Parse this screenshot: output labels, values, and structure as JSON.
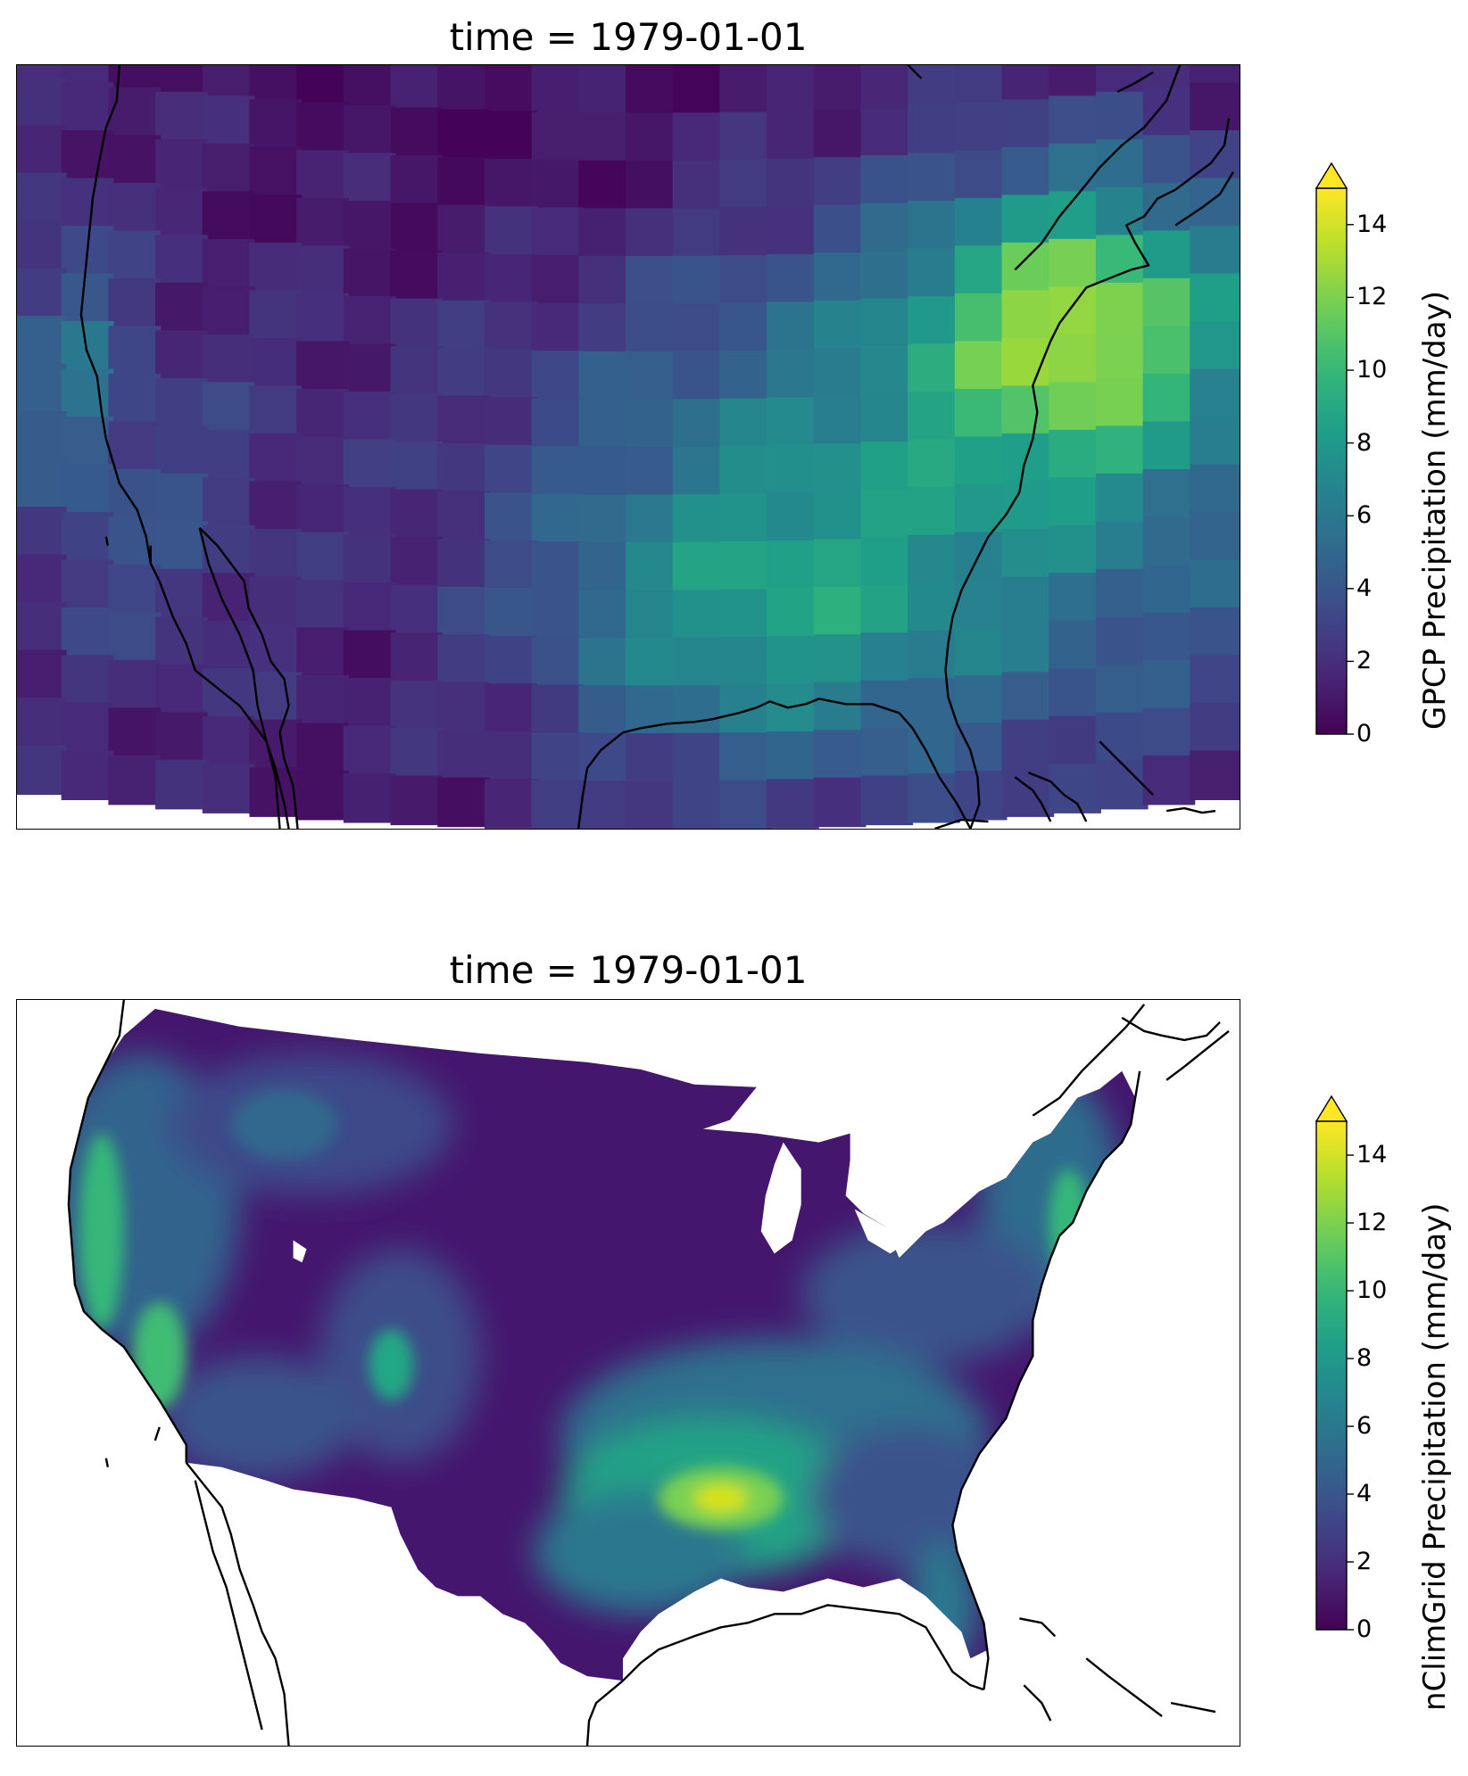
{
  "panels": [
    {
      "id": "gpcp",
      "title": "time = 1979-01-01",
      "colorbar": {
        "label": "GPCP Precipitation (mm/day)",
        "ticks": [
          0,
          2,
          4,
          6,
          8,
          10,
          12,
          14
        ],
        "range": [
          0,
          15
        ],
        "extend": "max",
        "colormap": "viridis"
      }
    },
    {
      "id": "nclimgrid",
      "title": "time = 1979-01-01",
      "colorbar": {
        "label": "nClimGrid Precipitation (mm/day)",
        "ticks": [
          0,
          2,
          4,
          6,
          8,
          10,
          12,
          14
        ],
        "range": [
          0,
          15
        ],
        "extend": "max",
        "colormap": "viridis"
      }
    }
  ],
  "colors": {
    "viridis_0": "#440154",
    "viridis_25": "#3b528b",
    "viridis_50": "#21918c",
    "viridis_75": "#5ec962",
    "viridis_100": "#fde725",
    "coastline": "#000000",
    "nodata": "#ffffff"
  }
}
